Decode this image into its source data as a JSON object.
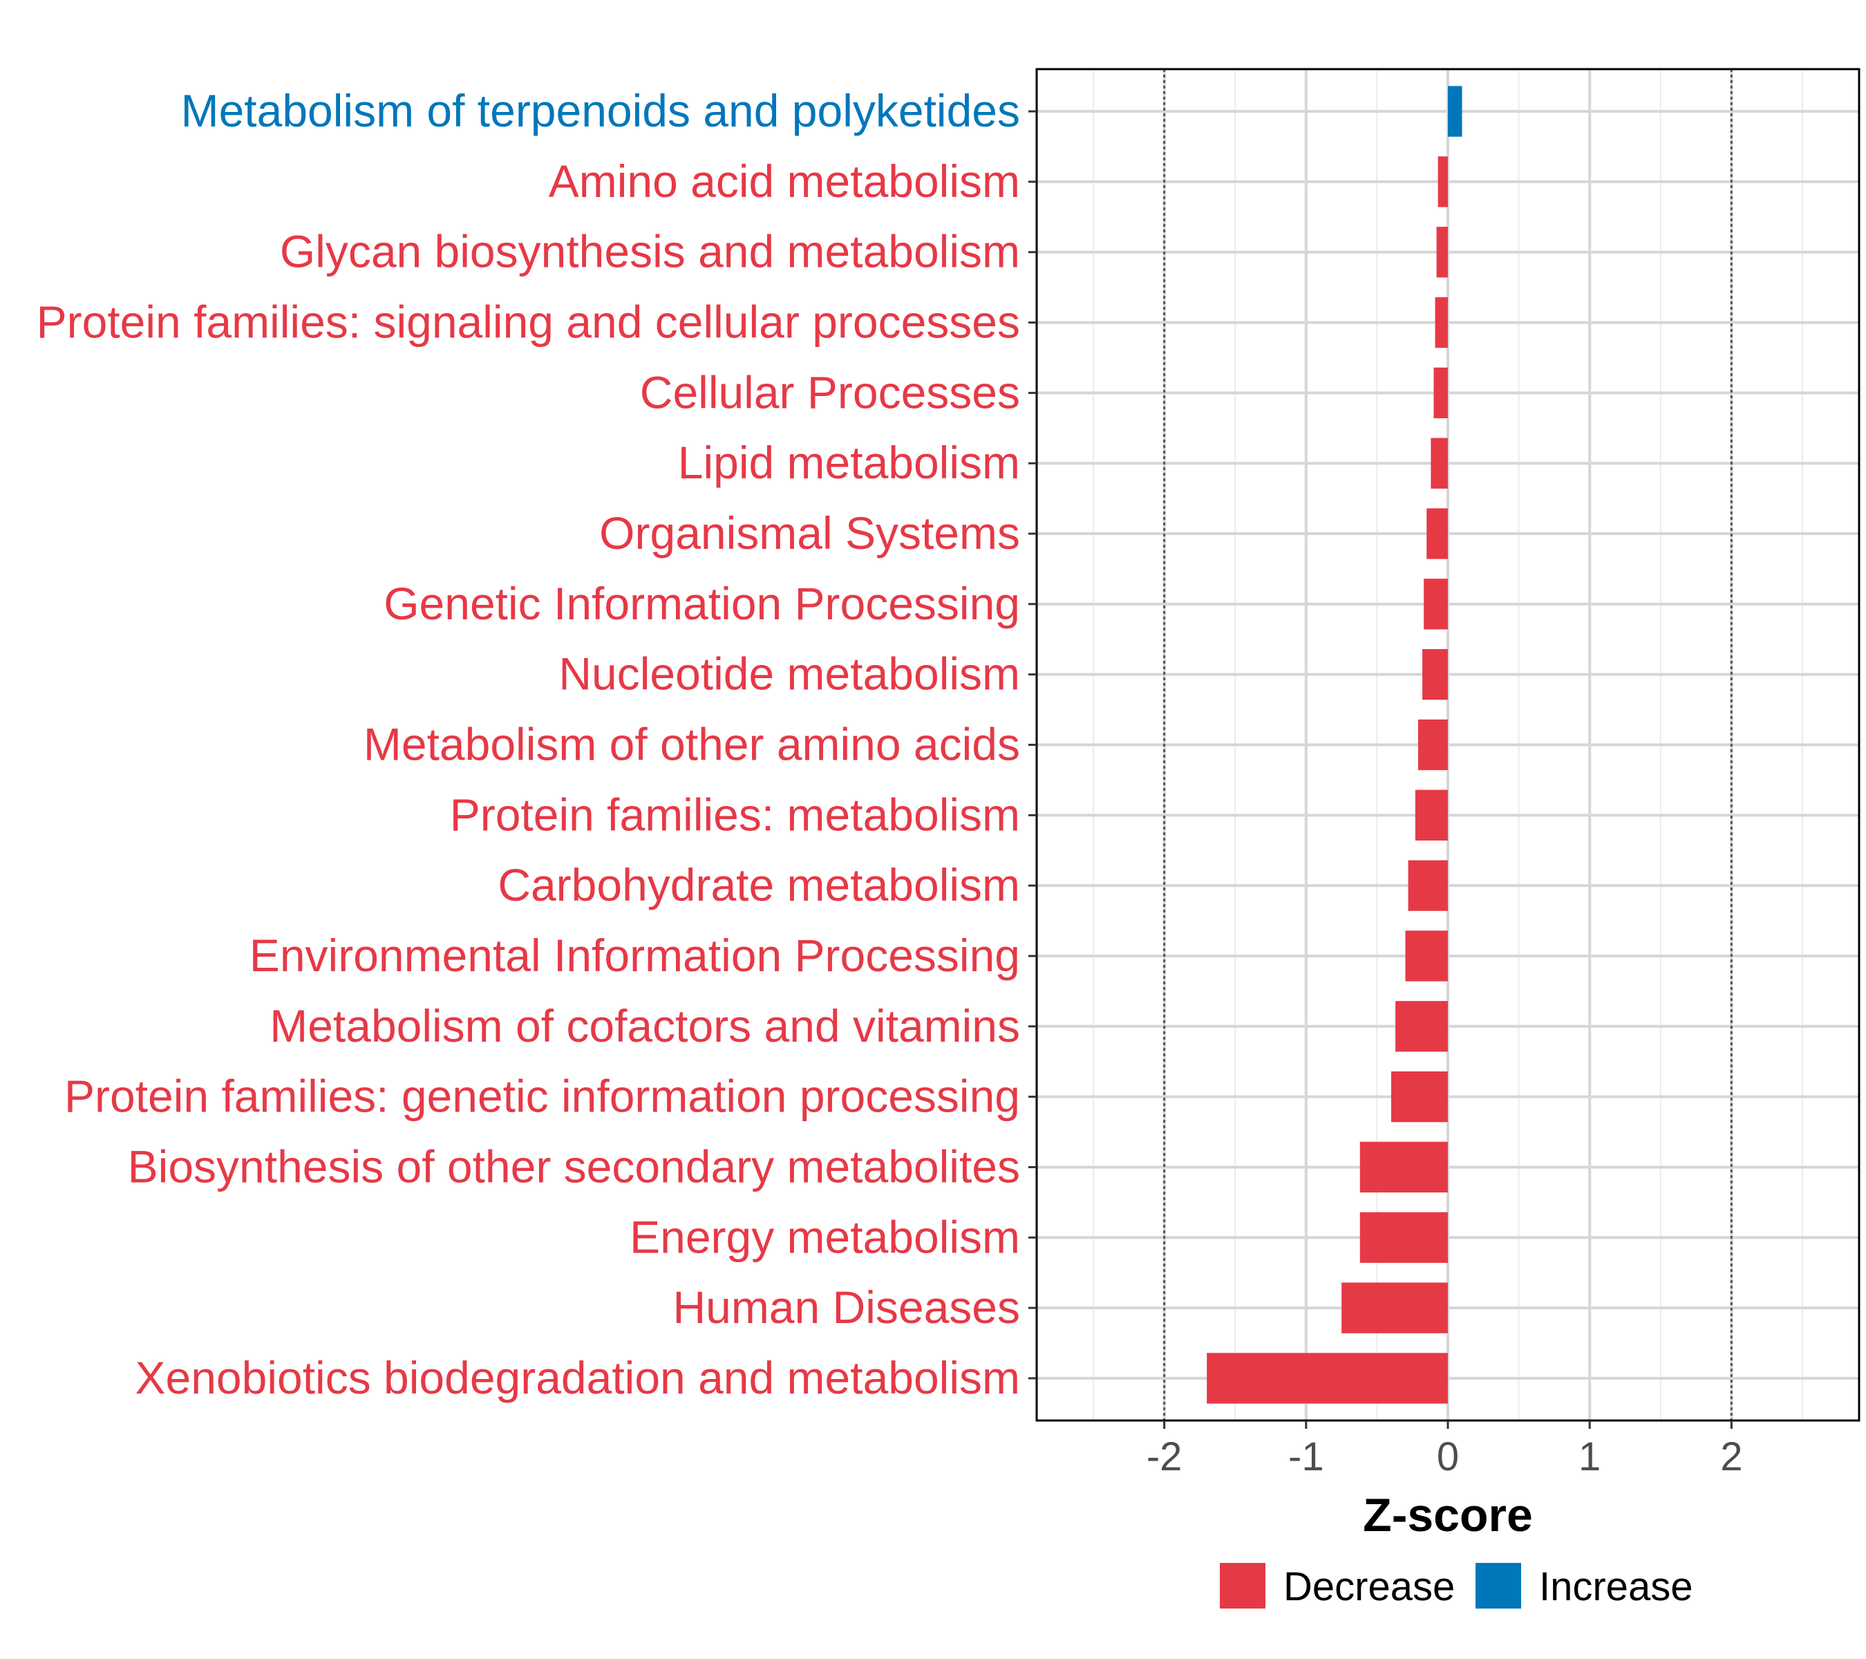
{
  "chart_data": {
    "type": "bar",
    "orientation": "horizontal",
    "xlabel": "Z-score",
    "xlim": [
      -2.9,
      2.9
    ],
    "xticks": [
      -2,
      -1,
      0,
      1,
      2
    ],
    "xtick_labels": [
      "-2",
      "-1",
      "0",
      "1",
      "2"
    ],
    "reference_lines": [
      -2,
      2
    ],
    "grid": true,
    "categories": [
      "Metabolism of terpenoids and polyketides",
      "Amino acid metabolism",
      "Glycan biosynthesis and metabolism",
      "Protein families: signaling and cellular processes",
      "Cellular Processes",
      "Lipid metabolism",
      "Organismal Systems",
      "Genetic Information Processing",
      "Nucleotide metabolism",
      "Metabolism of other amino acids",
      "Protein families: metabolism",
      "Carbohydrate metabolism",
      "Environmental Information Processing",
      "Metabolism of cofactors and vitamins",
      "Protein families: genetic information processing",
      "Biosynthesis of other secondary metabolites",
      "Energy metabolism",
      "Human Diseases",
      "Xenobiotics biodegradation and metabolism"
    ],
    "values": [
      0.1,
      -0.07,
      -0.08,
      -0.09,
      -0.1,
      -0.12,
      -0.15,
      -0.17,
      -0.18,
      -0.21,
      -0.23,
      -0.28,
      -0.3,
      -0.37,
      -0.4,
      -0.62,
      -0.62,
      -0.75,
      -1.7
    ],
    "legend": {
      "position": "bottom",
      "entries": [
        {
          "name": "Decrease",
          "color": "#E63946"
        },
        {
          "name": "Increase",
          "color": "#0077BB"
        }
      ]
    }
  }
}
